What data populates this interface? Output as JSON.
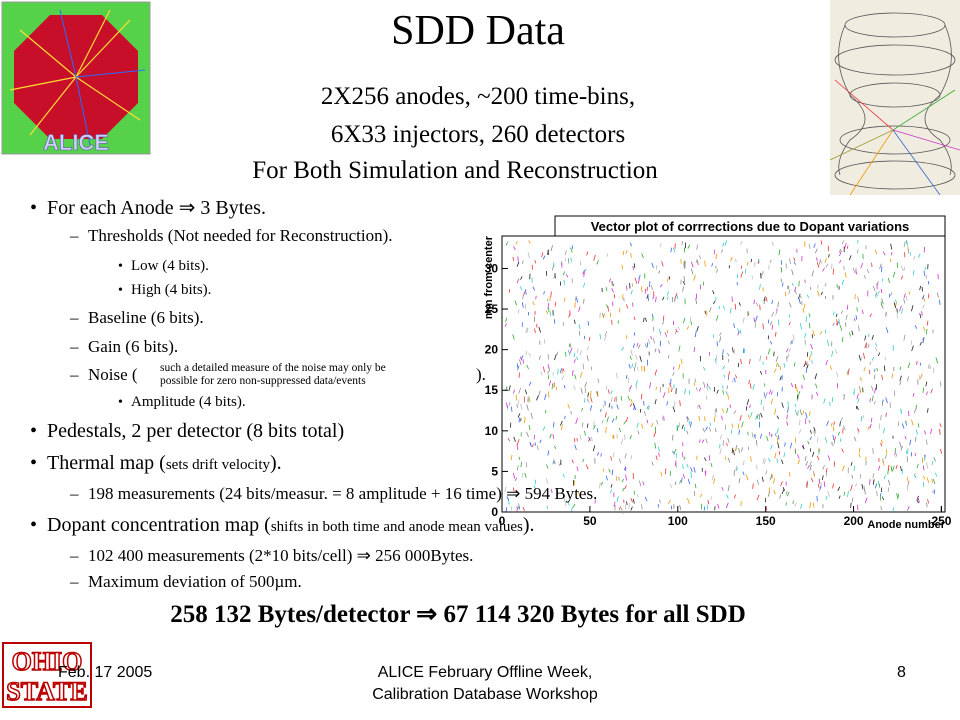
{
  "title": "SDD Data",
  "subtitle": [
    "2X256 anodes, ~200 time-bins,",
    "6X33 injectors, 260 detectors",
    "For Both Simulation and Reconstruction"
  ],
  "bullets": [
    {
      "text": "For each Anode ⇒ 3 Bytes.",
      "children": [
        {
          "text": "Thresholds (Not needed for Reconstruction).",
          "children": [
            "Low (4 bits).",
            "High (4 bits)."
          ]
        },
        {
          "text": "Baseline (6 bits)."
        },
        {
          "text": "Gain (6 bits)."
        },
        {
          "text": [
            "Noise (",
            "such a detailed measure of the noise may only be",
            "possible for zero non-suppressed data/events",
            ")."
          ],
          "children": [
            "Amplitude (4 bits)."
          ]
        }
      ]
    },
    {
      "text": "Pedestals, 2 per detector (8 bits total)"
    },
    {
      "text": [
        "Thermal map (",
        "sets drift velocity",
        ")."
      ],
      "children": [
        {
          "text": "198 measurements (24 bits/measur. = 8 amplitude + 16 time) ⇒ 594 Bytes."
        }
      ]
    },
    {
      "text": [
        "Dopant  concentration map (",
        "shifts in both time and anode mean values",
        ")."
      ],
      "children": [
        {
          "text": "102 400 measurements (2*10 bits/cell) ⇒ 256 000Bytes."
        },
        {
          "text": "Maximum deviation of 500µm."
        }
      ]
    }
  ],
  "summary": "258 132 Bytes/detector ⇒ 67 114 320 Bytes for all SDD",
  "plot": {
    "title": "Vector plot of corrrections due to Dopant variations",
    "xlabel": "Anode number",
    "ylabel": "mm from center",
    "xlim": [
      0,
      252
    ],
    "ylim": [
      0,
      34
    ],
    "xticks": [
      0,
      50,
      100,
      150,
      200,
      250
    ],
    "yticks": [
      0,
      5,
      10,
      15,
      20,
      25,
      30
    ]
  },
  "footer": {
    "date": "Feb. 17 2005",
    "event": [
      "ALICE February Offline Week,",
      "Calibration Database Workshop"
    ],
    "page": "8"
  },
  "logos": {
    "alice": "ALICE",
    "osu": [
      "OHIO",
      "STATE"
    ]
  }
}
